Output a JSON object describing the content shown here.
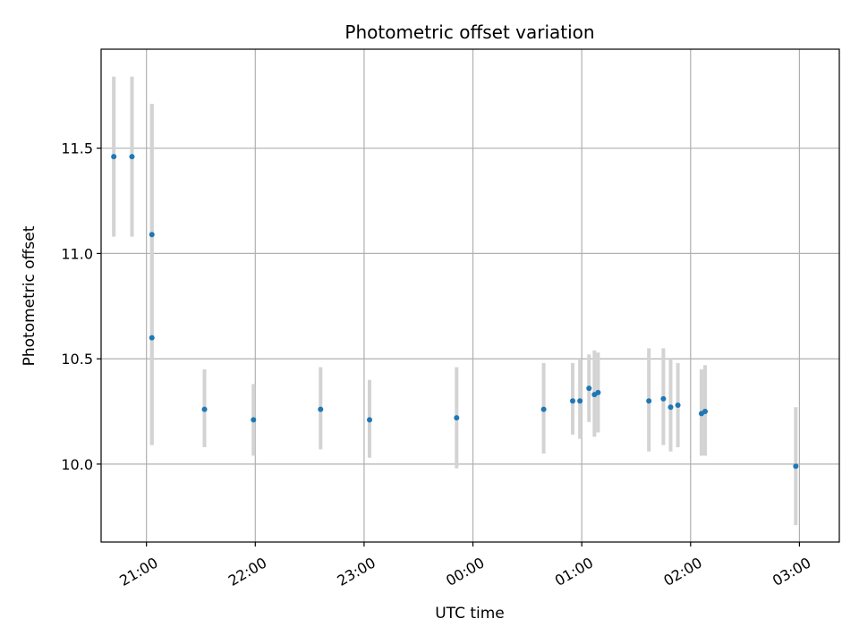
{
  "chart_data": {
    "type": "scatter",
    "title": "Photometric offset variation",
    "xlabel": "UTC time",
    "ylabel": "Photometric offset",
    "x_axis_kind": "time",
    "xlim": [
      "20:35",
      "03:22"
    ],
    "ylim": [
      9.63,
      11.97
    ],
    "xticks": [
      "21:00",
      "22:00",
      "23:00",
      "00:00",
      "01:00",
      "02:00",
      "03:00"
    ],
    "yticks": [
      10.0,
      10.5,
      11.0,
      11.5
    ],
    "ytick_labels": [
      "10.0",
      "10.5",
      "11.0",
      "11.5"
    ],
    "grid": true,
    "marker_color": "#1f77b4",
    "errorbar_color": "#d3d3d3",
    "points": [
      {
        "time": "20:42",
        "y": 11.46,
        "lo": 11.08,
        "hi": 11.84
      },
      {
        "time": "20:52",
        "y": 11.46,
        "lo": 11.08,
        "hi": 11.84
      },
      {
        "time": "21:03",
        "y": 11.09,
        "lo": 10.09,
        "hi": 11.71
      },
      {
        "time": "21:03",
        "y": 10.6,
        "lo": 10.09,
        "hi": 11.71
      },
      {
        "time": "21:32",
        "y": 10.26,
        "lo": 10.08,
        "hi": 10.45
      },
      {
        "time": "21:59",
        "y": 10.21,
        "lo": 10.04,
        "hi": 10.38
      },
      {
        "time": "22:36",
        "y": 10.26,
        "lo": 10.07,
        "hi": 10.46
      },
      {
        "time": "23:03",
        "y": 10.21,
        "lo": 10.03,
        "hi": 10.4
      },
      {
        "time": "23:51",
        "y": 10.22,
        "lo": 9.98,
        "hi": 10.46
      },
      {
        "time": "00:39",
        "y": 10.26,
        "lo": 10.05,
        "hi": 10.48
      },
      {
        "time": "00:55",
        "y": 10.3,
        "lo": 10.14,
        "hi": 10.48
      },
      {
        "time": "00:59",
        "y": 10.3,
        "lo": 10.12,
        "hi": 10.5
      },
      {
        "time": "01:04",
        "y": 10.36,
        "lo": 10.2,
        "hi": 10.52
      },
      {
        "time": "01:07",
        "y": 10.33,
        "lo": 10.13,
        "hi": 10.54
      },
      {
        "time": "01:09",
        "y": 10.34,
        "lo": 10.15,
        "hi": 10.53
      },
      {
        "time": "01:37",
        "y": 10.3,
        "lo": 10.06,
        "hi": 10.55
      },
      {
        "time": "01:45",
        "y": 10.31,
        "lo": 10.09,
        "hi": 10.55
      },
      {
        "time": "01:49",
        "y": 10.27,
        "lo": 10.06,
        "hi": 10.5
      },
      {
        "time": "01:53",
        "y": 10.28,
        "lo": 10.08,
        "hi": 10.48
      },
      {
        "time": "02:06",
        "y": 10.24,
        "lo": 10.04,
        "hi": 10.45
      },
      {
        "time": "02:08",
        "y": 10.25,
        "lo": 10.04,
        "hi": 10.47
      },
      {
        "time": "02:58",
        "y": 9.99,
        "lo": 9.71,
        "hi": 10.27
      }
    ]
  }
}
